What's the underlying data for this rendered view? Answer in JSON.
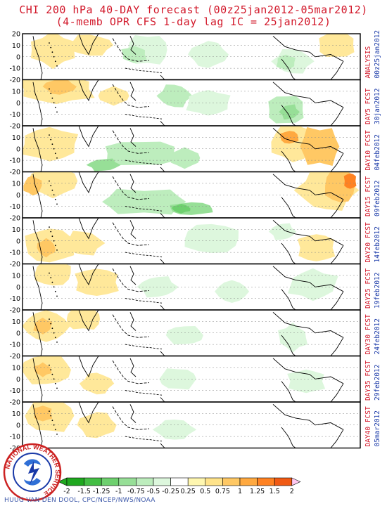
{
  "header": {
    "title_line1": "CHI 200 hPa 40-DAY forecast (00z25jan2012-05mar2012)",
    "title_line2": "(4-memb OPR CFS 1-day lag IC = 25jan2012)"
  },
  "y_ticks": [
    "20",
    "10",
    "0",
    "-10",
    "-20"
  ],
  "panels": [
    {
      "label": "ANALYSIS",
      "date": "00z25jan2012"
    },
    {
      "label": "DAY5 FCST",
      "date": "30jan2012"
    },
    {
      "label": "DAY10 FCST",
      "date": "04feb2012"
    },
    {
      "label": "DAY15 FCST",
      "date": "09feb2012"
    },
    {
      "label": "DAY20 FCST",
      "date": "14feb2012"
    },
    {
      "label": "DAY25 FCST",
      "date": "19feb2012"
    },
    {
      "label": "DAY30 FCST",
      "date": "24feb2012"
    },
    {
      "label": "DAY35 FCST",
      "date": "29feb2012"
    },
    {
      "label": "DAY40 FCST",
      "date": "05mar2012"
    }
  ],
  "colorbar": {
    "labels": [
      "-2",
      "-1.5",
      "-1.25",
      "-1",
      "-0.75",
      "-0.5",
      "-0.25",
      "0.25",
      "0.5",
      "0.75",
      "1",
      "1.25",
      "1.5",
      "2"
    ],
    "colors": [
      "#1fa81f",
      "#44be44",
      "#6ed06e",
      "#97df97",
      "#bdedbd",
      "#ddf7dd",
      "#ffffff",
      "#fff7b0",
      "#ffe38a",
      "#ffc864",
      "#ffa940",
      "#ff8222",
      "#f05a14",
      "#ffc8f0"
    ]
  },
  "logo": {
    "text": "NATIONAL WEATHER SERVICE"
  },
  "credit": "HUUG VAN DEN DOOL, CPC/NCEP/NWS/NOAA"
}
